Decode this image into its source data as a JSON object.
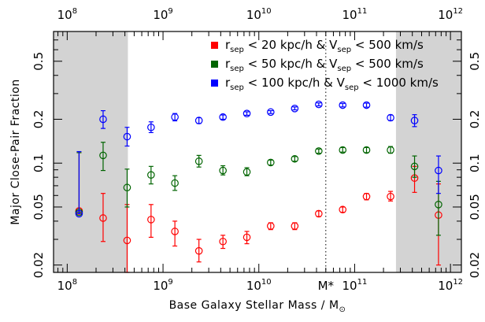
{
  "chart_data": {
    "type": "scatter",
    "xlabel": "Base Galaxy Stellar Mass / M",
    "xlabel_symbol": "⊙",
    "ylabel": "Major Close-Pair Fraction",
    "xscale": "log",
    "yscale": "log",
    "xlim": [
      72000000.0,
      1300000000000.0
    ],
    "ylim": [
      0.0178,
      0.8
    ],
    "x_ticks": [
      {
        "value": 100000000.0,
        "base": "10",
        "exp": "8"
      },
      {
        "value": 1000000000.0,
        "base": "10",
        "exp": "9"
      },
      {
        "value": 10000000000.0,
        "base": "10",
        "exp": "10"
      },
      {
        "value": 100000000000.0,
        "base": "10",
        "exp": "11"
      },
      {
        "value": 1000000000000.0,
        "base": "10",
        "exp": "12"
      }
    ],
    "y_ticks": [
      {
        "value": 0.02,
        "label": "0.02"
      },
      {
        "value": 0.05,
        "label": "0.05"
      },
      {
        "value": 0.1,
        "label": "0.1"
      },
      {
        "value": 0.2,
        "label": "0.2"
      },
      {
        "value": 0.5,
        "label": "0.5"
      }
    ],
    "mstar": {
      "value": 50000000000.0,
      "label": "M*"
    },
    "shaded_regions": [
      {
        "from": 72000000.0,
        "to": 430000000.0,
        "color": "#d3d3d3"
      },
      {
        "from": 270000000000.0,
        "to": 1300000000000.0,
        "color": "#d3d3d3"
      }
    ],
    "legend_position": "top-right",
    "series": [
      {
        "color": "#ff0000",
        "legend": {
          "r": "r",
          "sub1": "sep",
          "mid": " < 20 kpc/h & V",
          "sub2": "sep",
          "end": " < 500 km/s"
        },
        "points": [
          {
            "x": 133000000.0,
            "y": 0.047,
            "lo": 0.047,
            "hi": 0.118
          },
          {
            "x": 237000000.0,
            "y": 0.042,
            "lo": 0.029,
            "hi": 0.062
          },
          {
            "x": 422000000.0,
            "y": 0.0295,
            "lo": 0.0178,
            "hi": 0.052
          },
          {
            "x": 750000000.0,
            "y": 0.041,
            "lo": 0.031,
            "hi": 0.052
          },
          {
            "x": 1330000000.0,
            "y": 0.034,
            "lo": 0.027,
            "hi": 0.04
          },
          {
            "x": 2370000000.0,
            "y": 0.025,
            "lo": 0.021,
            "hi": 0.03
          },
          {
            "x": 4220000000.0,
            "y": 0.029,
            "lo": 0.026,
            "hi": 0.032
          },
          {
            "x": 7500000000.0,
            "y": 0.031,
            "lo": 0.028,
            "hi": 0.034
          },
          {
            "x": 13300000000.0,
            "y": 0.037,
            "lo": 0.035,
            "hi": 0.039
          },
          {
            "x": 23700000000.0,
            "y": 0.037,
            "lo": 0.035,
            "hi": 0.039
          },
          {
            "x": 42200000000.0,
            "y": 0.045,
            "lo": 0.043,
            "hi": 0.047
          },
          {
            "x": 75000000000.0,
            "y": 0.048,
            "lo": 0.046,
            "hi": 0.05
          },
          {
            "x": 133000000000.0,
            "y": 0.059,
            "lo": 0.056,
            "hi": 0.062
          },
          {
            "x": 237000000000.0,
            "y": 0.059,
            "lo": 0.055,
            "hi": 0.064
          },
          {
            "x": 422000000000.0,
            "y": 0.079,
            "lo": 0.063,
            "hi": 0.095
          },
          {
            "x": 750000000000.0,
            "y": 0.044,
            "lo": 0.02,
            "hi": 0.072
          }
        ]
      },
      {
        "color": "#006400",
        "legend": {
          "r": "r",
          "sub1": "sep",
          "mid": " < 50 kpc/h & V",
          "sub2": "sep",
          "end": " < 500 km/s"
        },
        "points": [
          {
            "x": 133000000.0,
            "y": 0.046,
            "lo": 0.046,
            "hi": 0.118
          },
          {
            "x": 237000000.0,
            "y": 0.113,
            "lo": 0.089,
            "hi": 0.139
          },
          {
            "x": 422000000.0,
            "y": 0.068,
            "lo": 0.05,
            "hi": 0.091
          },
          {
            "x": 750000000.0,
            "y": 0.083,
            "lo": 0.072,
            "hi": 0.095
          },
          {
            "x": 1330000000.0,
            "y": 0.073,
            "lo": 0.065,
            "hi": 0.082
          },
          {
            "x": 2370000000.0,
            "y": 0.103,
            "lo": 0.094,
            "hi": 0.113
          },
          {
            "x": 4220000000.0,
            "y": 0.089,
            "lo": 0.083,
            "hi": 0.096
          },
          {
            "x": 7500000000.0,
            "y": 0.087,
            "lo": 0.082,
            "hi": 0.093
          },
          {
            "x": 13300000000.0,
            "y": 0.101,
            "lo": 0.097,
            "hi": 0.105
          },
          {
            "x": 23700000000.0,
            "y": 0.107,
            "lo": 0.103,
            "hi": 0.111
          },
          {
            "x": 42200000000.0,
            "y": 0.121,
            "lo": 0.117,
            "hi": 0.125
          },
          {
            "x": 75000000000.0,
            "y": 0.123,
            "lo": 0.119,
            "hi": 0.128
          },
          {
            "x": 133000000000.0,
            "y": 0.123,
            "lo": 0.118,
            "hi": 0.128
          },
          {
            "x": 237000000000.0,
            "y": 0.123,
            "lo": 0.117,
            "hi": 0.13
          },
          {
            "x": 422000000000.0,
            "y": 0.095,
            "lo": 0.08,
            "hi": 0.112
          },
          {
            "x": 750000000000.0,
            "y": 0.052,
            "lo": 0.032,
            "hi": 0.075
          }
        ]
      },
      {
        "color": "#0000ff",
        "legend": {
          "r": "r",
          "sub1": "sep",
          "mid": " < 100 kpc/h & V",
          "sub2": "sep",
          "end": " < 1000 km/s"
        },
        "points": [
          {
            "x": 133000000.0,
            "y": 0.045,
            "lo": 0.045,
            "hi": 0.12
          },
          {
            "x": 237000000.0,
            "y": 0.2,
            "lo": 0.173,
            "hi": 0.229
          },
          {
            "x": 422000000.0,
            "y": 0.152,
            "lo": 0.131,
            "hi": 0.176
          },
          {
            "x": 750000000.0,
            "y": 0.176,
            "lo": 0.162,
            "hi": 0.192
          },
          {
            "x": 1330000000.0,
            "y": 0.207,
            "lo": 0.195,
            "hi": 0.219
          },
          {
            "x": 2370000000.0,
            "y": 0.196,
            "lo": 0.187,
            "hi": 0.205
          },
          {
            "x": 4220000000.0,
            "y": 0.207,
            "lo": 0.2,
            "hi": 0.214
          },
          {
            "x": 7500000000.0,
            "y": 0.219,
            "lo": 0.213,
            "hi": 0.225
          },
          {
            "x": 13300000000.0,
            "y": 0.224,
            "lo": 0.219,
            "hi": 0.229
          },
          {
            "x": 23700000000.0,
            "y": 0.237,
            "lo": 0.232,
            "hi": 0.243
          },
          {
            "x": 42200000000.0,
            "y": 0.253,
            "lo": 0.247,
            "hi": 0.259
          },
          {
            "x": 75000000000.0,
            "y": 0.25,
            "lo": 0.243,
            "hi": 0.257
          },
          {
            "x": 133000000000.0,
            "y": 0.25,
            "lo": 0.242,
            "hi": 0.258
          },
          {
            "x": 237000000000.0,
            "y": 0.205,
            "lo": 0.196,
            "hi": 0.214
          },
          {
            "x": 422000000000.0,
            "y": 0.196,
            "lo": 0.178,
            "hi": 0.215
          },
          {
            "x": 750000000000.0,
            "y": 0.089,
            "lo": 0.062,
            "hi": 0.112
          }
        ]
      }
    ]
  }
}
